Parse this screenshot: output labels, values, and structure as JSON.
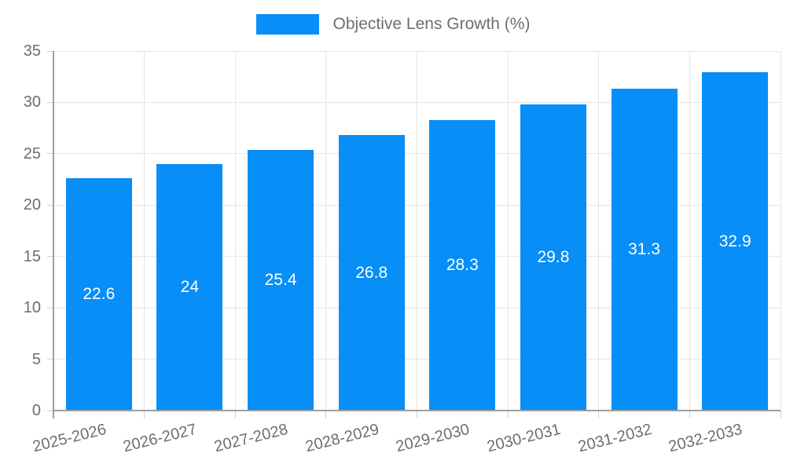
{
  "legend": {
    "items": [
      {
        "label": "Objective Lens Growth (%)",
        "swatch_color": "#078ef7"
      }
    ],
    "position": "top"
  },
  "chart_data": {
    "type": "bar",
    "title": "",
    "series": [
      {
        "name": "Objective Lens Growth (%)",
        "values": [
          22.6,
          24,
          25.4,
          26.8,
          28.3,
          29.8,
          31.3,
          32.9
        ],
        "color": "#078ef7"
      }
    ],
    "categories": [
      "2025-2026",
      "2026-2027",
      "2027-2028",
      "2028-2029",
      "2029-2030",
      "2030-2031",
      "2031-2032",
      "2032-2033"
    ],
    "value_labels": [
      "22.6",
      "24",
      "25.4",
      "26.8",
      "28.3",
      "29.8",
      "31.3",
      "32.9"
    ],
    "value_label_position": "center-of-bar",
    "value_label_color": "#ffffff",
    "xlabel": "",
    "ylabel": "",
    "ylim": [
      0,
      35
    ],
    "yticks": [
      0,
      5,
      10,
      15,
      20,
      25,
      30,
      35
    ],
    "grid": true,
    "legend_position": "top",
    "x_tick_rotation_deg": -14
  },
  "colors": {
    "bar": "#078ef7",
    "grid": "#e6e6e6",
    "axis": "#9e9e9e",
    "tick": "#cfcfcf",
    "axis_text": "#6e6e6e",
    "bar_label_text": "#ffffff",
    "background": "#ffffff"
  }
}
